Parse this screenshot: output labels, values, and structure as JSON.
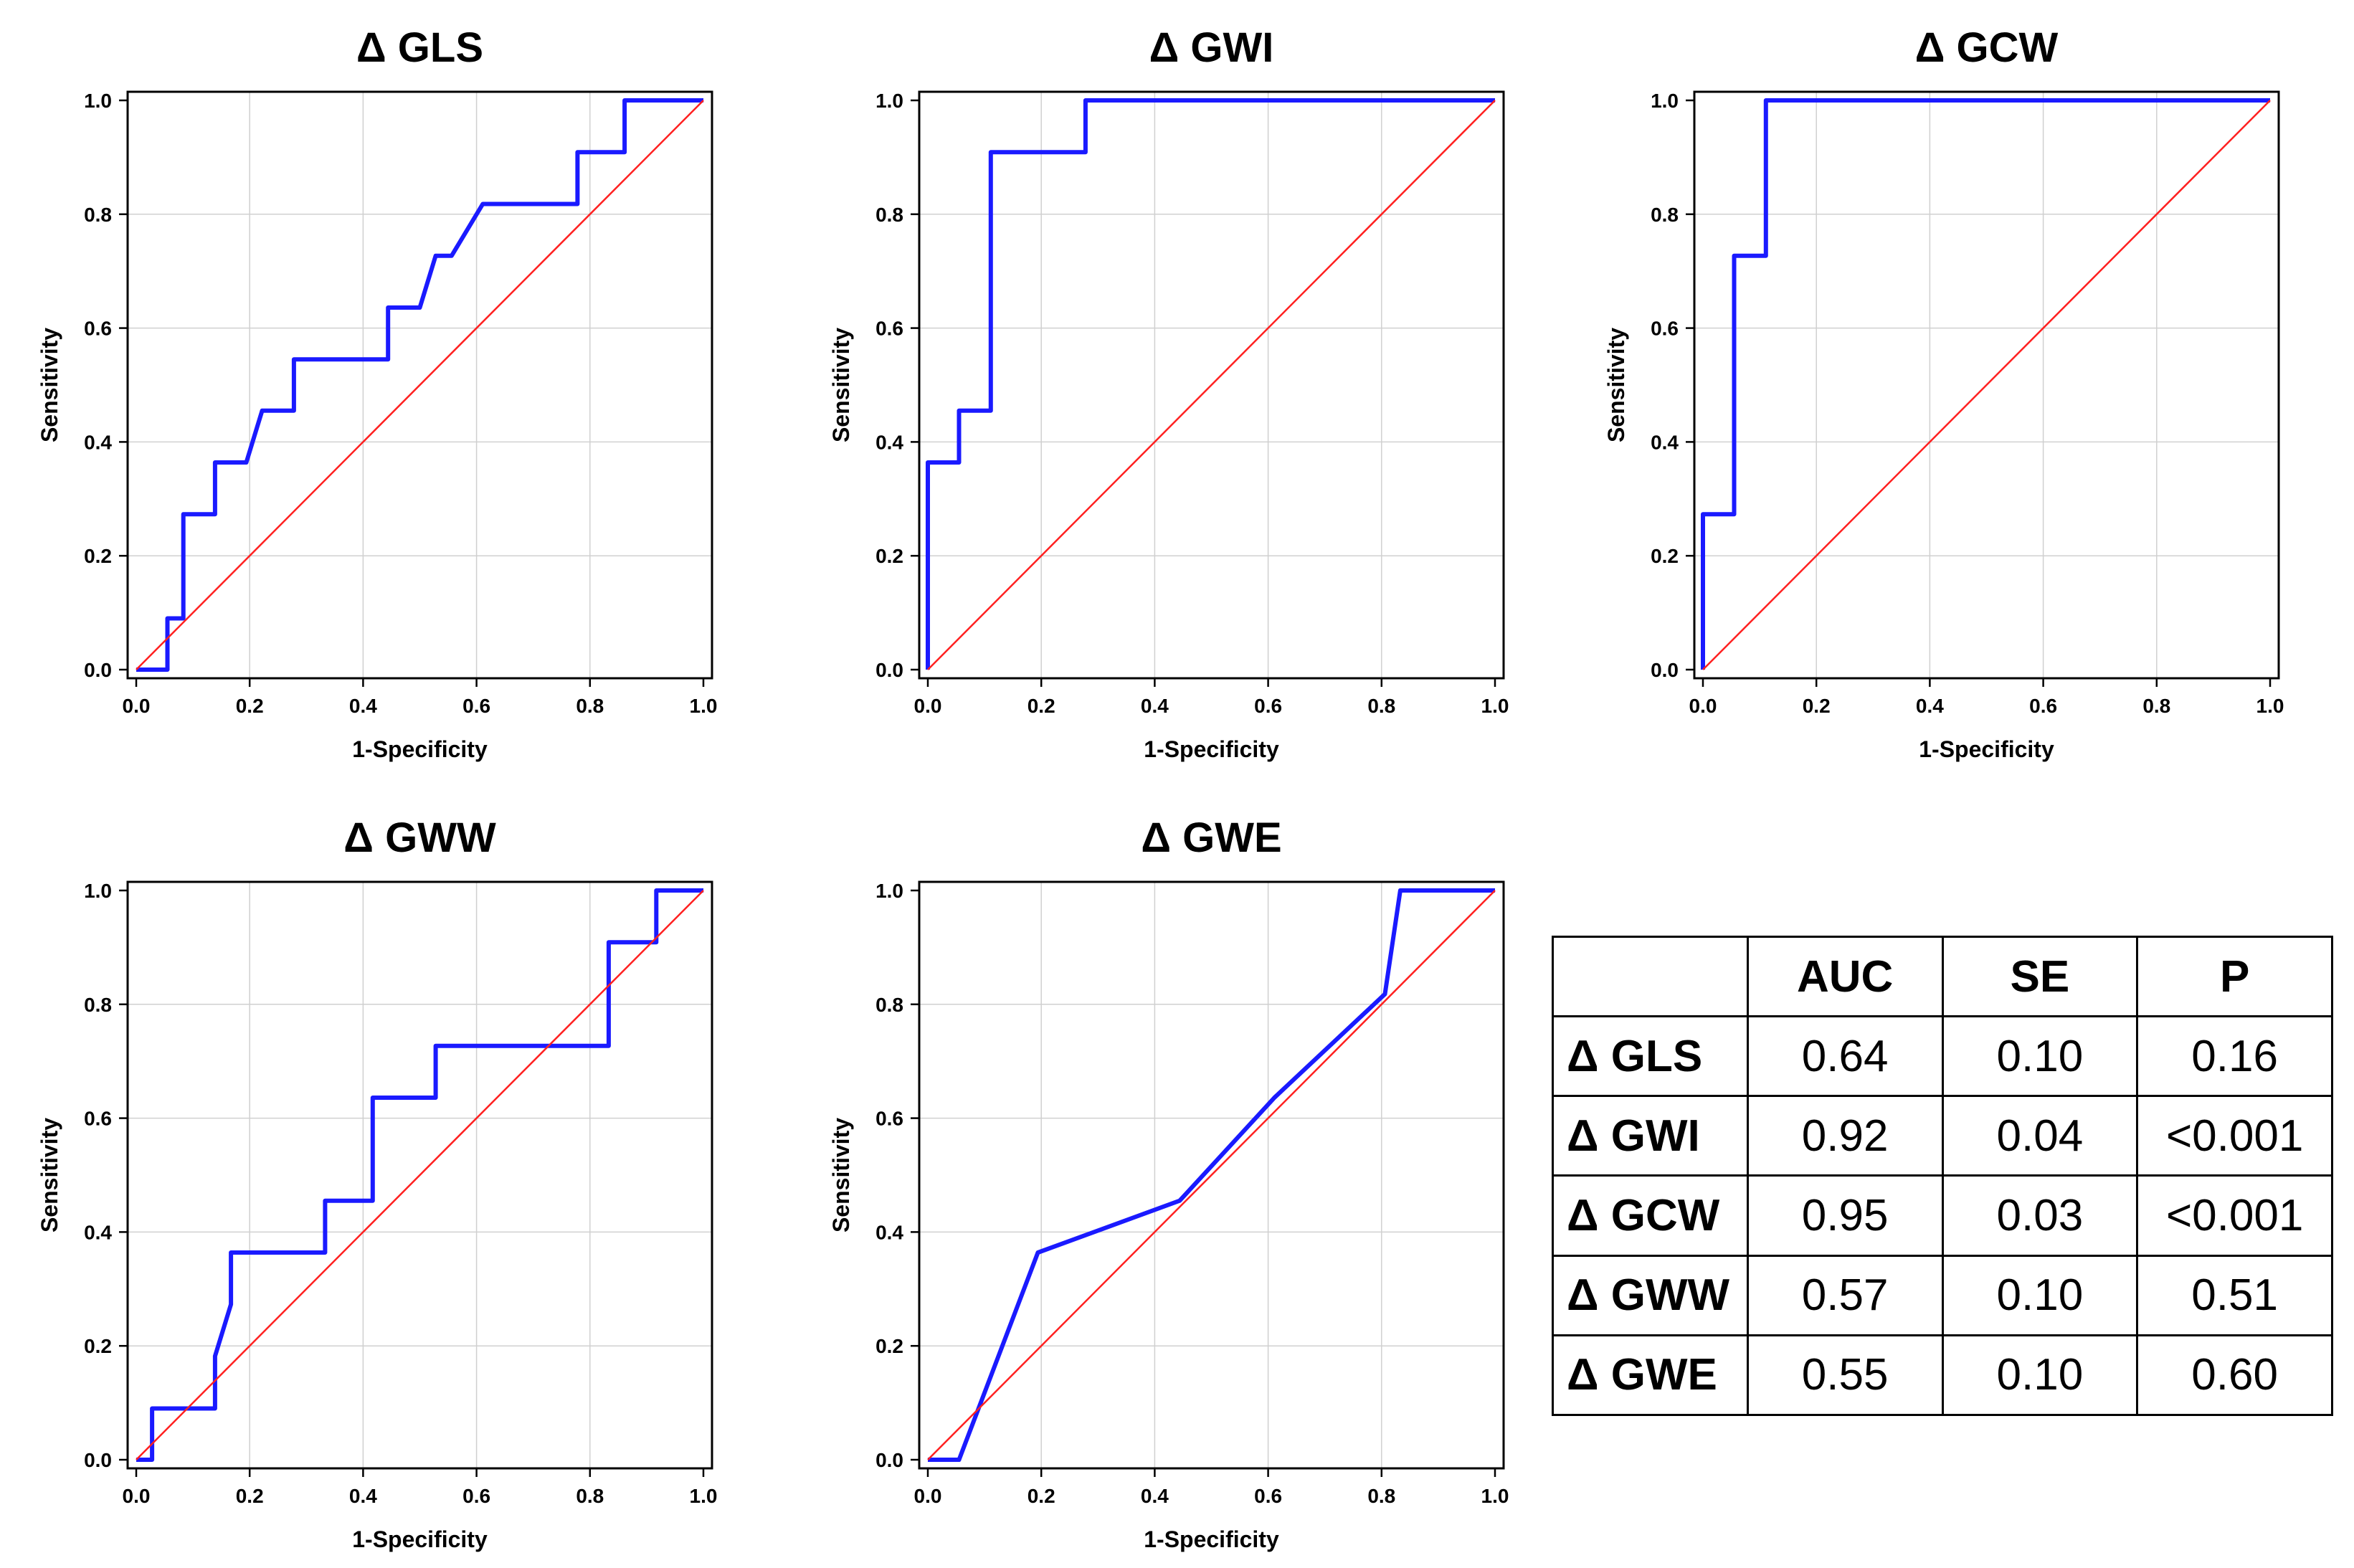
{
  "axis_common": {
    "xlabel": "1-Specificity",
    "ylabel": "Sensitivity",
    "xlim": [
      0,
      1
    ],
    "ylim": [
      0,
      1
    ],
    "ticks": [
      "0.0",
      "0.2",
      "0.4",
      "0.6",
      "0.8",
      "1.0"
    ],
    "grid": true
  },
  "colors": {
    "roc_line": "#1a1aff",
    "reference_line": "#ff2020",
    "axis": "#000000",
    "grid": "#d0d0d0"
  },
  "chart_data": [
    {
      "type": "line",
      "title": "Δ GLS",
      "xlabel": "1-Specificity",
      "ylabel": "Sensitivity",
      "xlim": [
        0,
        1
      ],
      "ylim": [
        0,
        1
      ],
      "series": [
        {
          "name": "ROC",
          "x": [
            0.0,
            0.055,
            0.055,
            0.083,
            0.083,
            0.139,
            0.139,
            0.194,
            0.222,
            0.278,
            0.278,
            0.444,
            0.444,
            0.5,
            0.528,
            0.556,
            0.611,
            0.778,
            0.778,
            0.861,
            0.861,
            1.0
          ],
          "y": [
            0.0,
            0.0,
            0.09,
            0.09,
            0.273,
            0.273,
            0.364,
            0.364,
            0.455,
            0.455,
            0.545,
            0.545,
            0.636,
            0.636,
            0.727,
            0.727,
            0.818,
            0.818,
            0.909,
            0.909,
            1.0,
            1.0
          ]
        },
        {
          "name": "Reference",
          "x": [
            0,
            1
          ],
          "y": [
            0,
            1
          ]
        }
      ]
    },
    {
      "type": "line",
      "title": "Δ GWI",
      "xlabel": "1-Specificity",
      "ylabel": "Sensitivity",
      "xlim": [
        0,
        1
      ],
      "ylim": [
        0,
        1
      ],
      "series": [
        {
          "name": "ROC",
          "x": [
            0.0,
            0.0,
            0.055,
            0.055,
            0.111,
            0.111,
            0.278,
            0.278,
            1.0
          ],
          "y": [
            0.0,
            0.364,
            0.364,
            0.455,
            0.455,
            0.909,
            0.909,
            1.0,
            1.0
          ]
        },
        {
          "name": "Reference",
          "x": [
            0,
            1
          ],
          "y": [
            0,
            1
          ]
        }
      ]
    },
    {
      "type": "line",
      "title": "Δ GCW",
      "xlabel": "1-Specificity",
      "ylabel": "Sensitivity",
      "xlim": [
        0,
        1
      ],
      "ylim": [
        0,
        1
      ],
      "series": [
        {
          "name": "ROC",
          "x": [
            0.0,
            0.0,
            0.055,
            0.055,
            0.111,
            0.111,
            1.0
          ],
          "y": [
            0.0,
            0.273,
            0.273,
            0.727,
            0.727,
            1.0,
            1.0
          ]
        },
        {
          "name": "Reference",
          "x": [
            0,
            1
          ],
          "y": [
            0,
            1
          ]
        }
      ]
    },
    {
      "type": "line",
      "title": "Δ GWW",
      "xlabel": "1-Specificity",
      "ylabel": "Sensitivity",
      "xlim": [
        0,
        1
      ],
      "ylim": [
        0,
        1
      ],
      "series": [
        {
          "name": "ROC",
          "x": [
            0.0,
            0.028,
            0.028,
            0.139,
            0.139,
            0.167,
            0.167,
            0.333,
            0.333,
            0.417,
            0.417,
            0.528,
            0.528,
            0.833,
            0.833,
            0.917,
            0.917,
            1.0
          ],
          "y": [
            0.0,
            0.0,
            0.09,
            0.09,
            0.182,
            0.273,
            0.364,
            0.364,
            0.455,
            0.455,
            0.636,
            0.636,
            0.727,
            0.727,
            0.909,
            0.909,
            1.0,
            1.0
          ]
        },
        {
          "name": "Reference",
          "x": [
            0,
            1
          ],
          "y": [
            0,
            1
          ]
        }
      ]
    },
    {
      "type": "line",
      "title": "Δ GWE",
      "xlabel": "1-Specificity",
      "ylabel": "Sensitivity",
      "xlim": [
        0,
        1
      ],
      "ylim": [
        0,
        1
      ],
      "series": [
        {
          "name": "ROC",
          "x": [
            0.0,
            0.055,
            0.194,
            0.444,
            0.611,
            0.806,
            0.833,
            1.0
          ],
          "y": [
            0.0,
            0.0,
            0.364,
            0.455,
            0.636,
            0.818,
            1.0,
            1.0
          ]
        },
        {
          "name": "Reference",
          "x": [
            0,
            1
          ],
          "y": [
            0,
            1
          ]
        }
      ]
    }
  ],
  "table": {
    "headers": [
      "",
      "AUC",
      "SE",
      "P"
    ],
    "rows": [
      {
        "label": "Δ GLS",
        "auc": "0.64",
        "se": "0.10",
        "p": "0.16"
      },
      {
        "label": "Δ GWI",
        "auc": "0.92",
        "se": "0.04",
        "p": "<0.001"
      },
      {
        "label": "Δ GCW",
        "auc": "0.95",
        "se": "0.03",
        "p": "<0.001"
      },
      {
        "label": "Δ GWW",
        "auc": "0.57",
        "se": "0.10",
        "p": "0.51"
      },
      {
        "label": "Δ GWE",
        "auc": "0.55",
        "se": "0.10",
        "p": "0.60"
      }
    ]
  }
}
